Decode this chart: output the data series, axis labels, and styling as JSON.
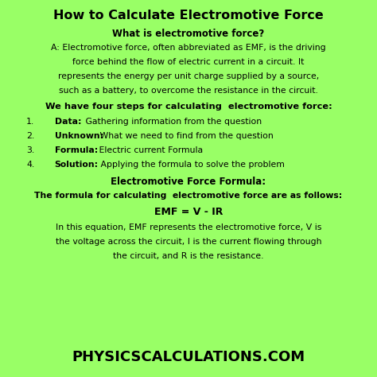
{
  "background_color": "#99ff66",
  "title": "How to Calculate Electromotive Force",
  "subtitle": "What is electromotive force?",
  "para1_lines": [
    "A: Electromotive force, often abbreviated as EMF, is the driving",
    "force behind the flow of electric current in a circuit. It",
    "represents the energy per unit charge supplied by a source,",
    "such as a battery, to overcome the resistance in the circuit."
  ],
  "steps_header": "We have four steps for calculating  electromotive force:",
  "steps": [
    [
      "Data:",
      " Gathering information from the question"
    ],
    [
      "Unknown:",
      " What we need to find from the question"
    ],
    [
      "Formula:",
      " Electric current Formula"
    ],
    [
      "Solution:",
      " Applying the formula to solve the problem"
    ]
  ],
  "formula_header": "Electromotive Force Formula:",
  "formula_subheader": "The formula for calculating  electromotive force are as follows:",
  "formula": "EMF = V - IR",
  "formula_explanation_lines": [
    "In this equation, EMF represents the electromotive force, V is",
    "the voltage across the circuit, I is the current flowing through",
    "the circuit, and R is the resistance."
  ],
  "footer": "PHYSICSCALCULATIONS.COM",
  "text_color": "#000000",
  "title_fontsize": 11.5,
  "subtitle_fontsize": 8.5,
  "body_fontsize": 7.8,
  "steps_header_fontsize": 8.2,
  "formula_header_fontsize": 8.5,
  "formula_fontsize": 9.0,
  "footer_fontsize": 13.0
}
